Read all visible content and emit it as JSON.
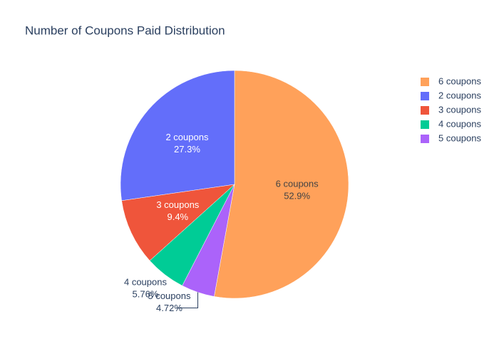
{
  "chart_data": {
    "type": "pie",
    "title": "Number of Coupons Paid Distribution",
    "categories": [
      "6 coupons",
      "2 coupons",
      "3 coupons",
      "4 coupons",
      "5 coupons"
    ],
    "values": [
      52.9,
      27.3,
      9.4,
      5.76,
      4.72
    ],
    "value_labels": [
      "52.9%",
      "27.3%",
      "9.4%",
      "5.76%",
      "4.72%"
    ],
    "colors": [
      "#ffa15a",
      "#636efa",
      "#ef553b",
      "#00cc96",
      "#ab63fa"
    ],
    "legend": "top-right"
  }
}
